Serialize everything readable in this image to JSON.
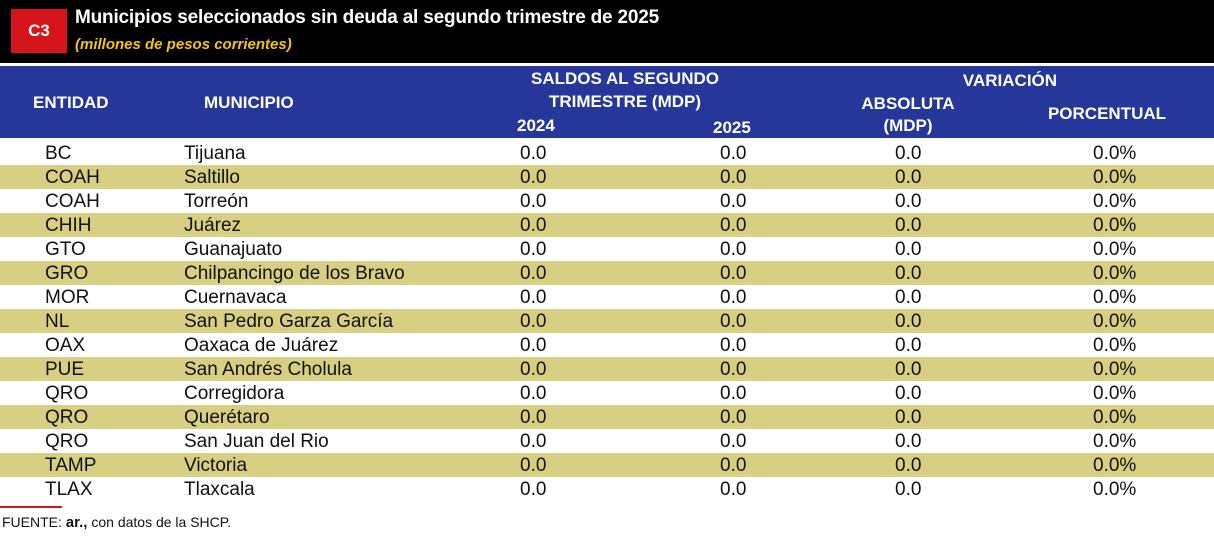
{
  "badge": "C3",
  "title": "Municipios seleccionados sin deuda al segundo trimestre de 2025",
  "subtitle": "(millones de pesos corrientes)",
  "headers": {
    "entidad": "ENTIDAD",
    "municipio": "MUNICIPIO",
    "saldos_line1": "SALDOS AL SEGUNDO",
    "saldos_line2": "TRIMESTRE (MDP)",
    "year1": "2024",
    "year2": "2025",
    "variacion": "VARIACIÓN",
    "absoluta_line1": "ABSOLUTA",
    "absoluta_line2": "(MDP)",
    "porcentual": "PORCENTUAL"
  },
  "rows": [
    {
      "entidad": "BC",
      "municipio": "Tijuana",
      "v2024": "0.0",
      "v2025": "0.0",
      "abs": "0.0",
      "pct": "0.0%"
    },
    {
      "entidad": "COAH",
      "municipio": "Saltillo",
      "v2024": "0.0",
      "v2025": "0.0",
      "abs": "0.0",
      "pct": "0.0%"
    },
    {
      "entidad": "COAH",
      "municipio": "Torreón",
      "v2024": "0.0",
      "v2025": "0.0",
      "abs": "0.0",
      "pct": "0.0%"
    },
    {
      "entidad": "CHIH",
      "municipio": "Juárez",
      "v2024": "0.0",
      "v2025": "0.0",
      "abs": "0.0",
      "pct": "0.0%"
    },
    {
      "entidad": "GTO",
      "municipio": "Guanajuato",
      "v2024": "0.0",
      "v2025": "0.0",
      "abs": "0.0",
      "pct": "0.0%"
    },
    {
      "entidad": "GRO",
      "municipio": "Chilpancingo de los Bravo",
      "v2024": "0.0",
      "v2025": "0.0",
      "abs": "0.0",
      "pct": "0.0%"
    },
    {
      "entidad": "MOR",
      "municipio": "Cuernavaca",
      "v2024": "0.0",
      "v2025": "0.0",
      "abs": "0.0",
      "pct": "0.0%"
    },
    {
      "entidad": "NL",
      "municipio": "San Pedro Garza García",
      "v2024": "0.0",
      "v2025": "0.0",
      "abs": "0.0",
      "pct": "0.0%"
    },
    {
      "entidad": "OAX",
      "municipio": "Oaxaca de Juárez",
      "v2024": "0.0",
      "v2025": "0.0",
      "abs": "0.0",
      "pct": "0.0%"
    },
    {
      "entidad": "PUE",
      "municipio": "San Andrés Cholula",
      "v2024": "0.0",
      "v2025": "0.0",
      "abs": "0.0",
      "pct": "0.0%"
    },
    {
      "entidad": "QRO",
      "municipio": "Corregidora",
      "v2024": "0.0",
      "v2025": "0.0",
      "abs": "0.0",
      "pct": "0.0%"
    },
    {
      "entidad": "QRO",
      "municipio": "Querétaro",
      "v2024": "0.0",
      "v2025": "0.0",
      "abs": "0.0",
      "pct": "0.0%"
    },
    {
      "entidad": "QRO",
      "municipio": "San Juan del Rio",
      "v2024": "0.0",
      "v2025": "0.0",
      "abs": "0.0",
      "pct": "0.0%"
    },
    {
      "entidad": "TAMP",
      "municipio": "Victoria",
      "v2024": "0.0",
      "v2025": "0.0",
      "abs": "0.0",
      "pct": "0.0%"
    },
    {
      "entidad": "TLAX",
      "municipio": "Tlaxcala",
      "v2024": "0.0",
      "v2025": "0.0",
      "abs": "0.0",
      "pct": "0.0%"
    }
  ],
  "source": {
    "prefix": "FUENTE: ",
    "brand": "ar.,",
    "suffix": " con datos de la SHCP."
  },
  "colors": {
    "header_bg": "#26379a",
    "row_alt": "#d7cf81",
    "badge_red": "#d6141c",
    "subtitle_yellow": "#f2c418"
  }
}
